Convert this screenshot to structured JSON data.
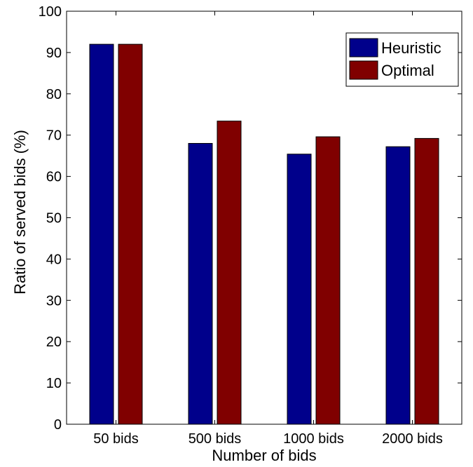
{
  "chart_data": {
    "type": "bar",
    "title": "",
    "xlabel": "Number of bids",
    "ylabel": "Ratio of served bids (%)",
    "categories": [
      "50 bids",
      "500 bids",
      "1000 bids",
      "2000 bids"
    ],
    "series": [
      {
        "name": "Heuristic",
        "color": "#00008B",
        "values": [
          92,
          68,
          65.4,
          67.2
        ]
      },
      {
        "name": "Optimal",
        "color": "#800000",
        "values": [
          92,
          73.4,
          69.6,
          69.2
        ]
      }
    ],
    "ylim": [
      0,
      100
    ],
    "yticks": [
      "0",
      "10",
      "20",
      "30",
      "40",
      "50",
      "60",
      "70",
      "80",
      "90",
      "100"
    ],
    "grid": false,
    "legend_position": "top-right"
  }
}
